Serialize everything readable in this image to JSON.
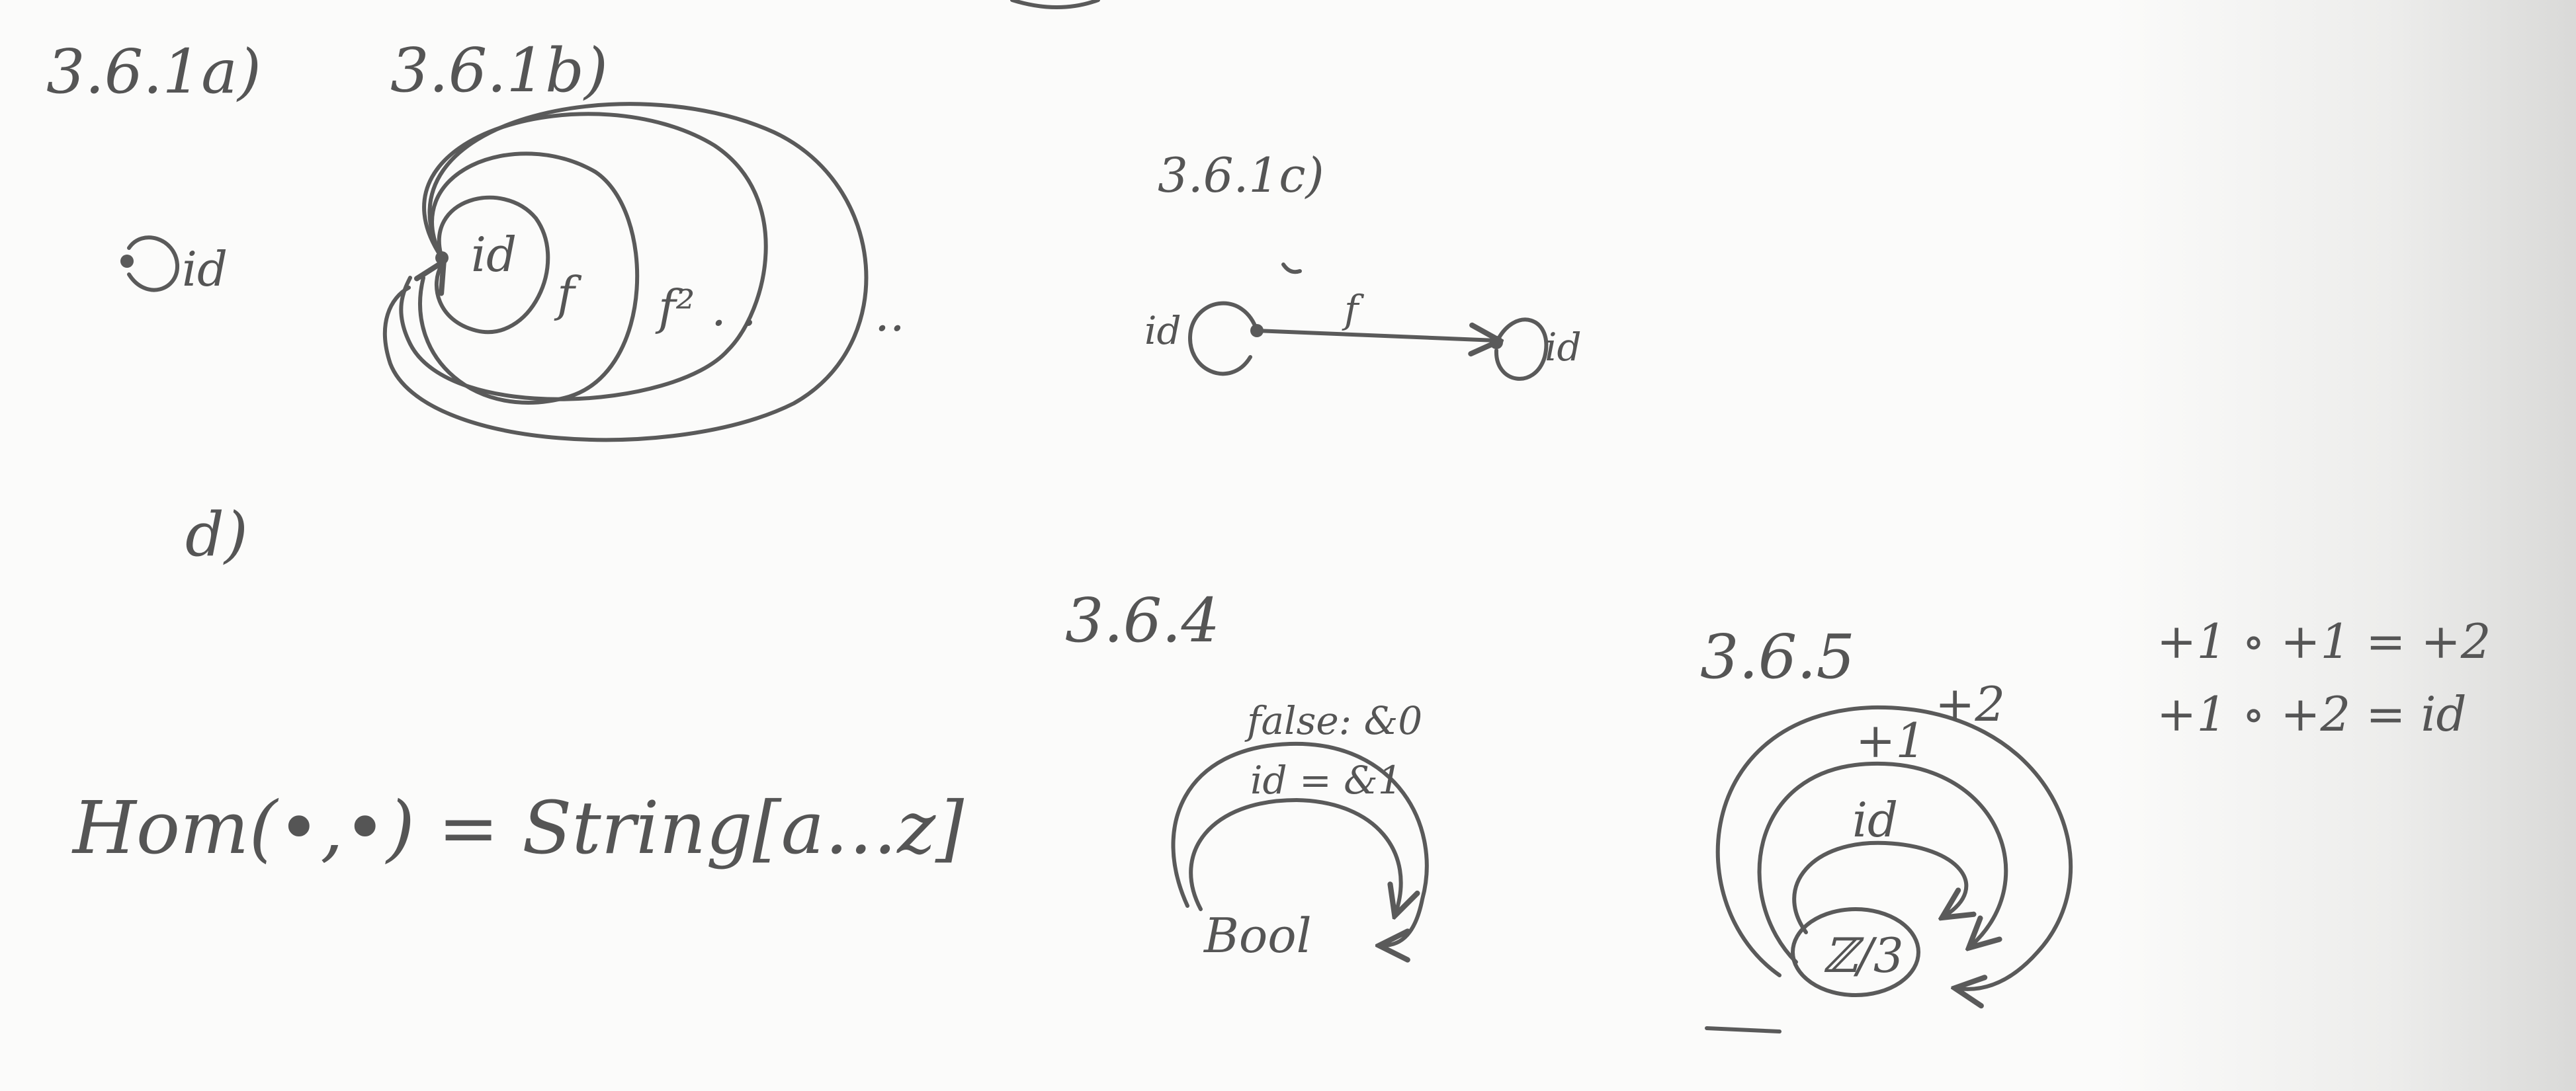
{
  "labels": {
    "ex_3_6_1a": "3.6.1a)",
    "ex_3_6_1b": "3.6.1b)",
    "ex_3_6_1c": "3.6.1c)",
    "ex_3_6_1d": "d)",
    "ex_3_6_4": "3.6.4",
    "ex_3_6_5": "3.6.5"
  },
  "diagram_a": {
    "arrow_label": "id"
  },
  "diagram_b": {
    "inner_label": "id",
    "middle_label": "f",
    "outer_label": "f²",
    "dots_inner": ". .",
    "dots_outer": ".."
  },
  "diagram_c": {
    "left_loop_label": "id",
    "arrow_label": "f",
    "right_loop_label": "id"
  },
  "diagram_d": {
    "hom_formula": "Hom(•,•) = String[a…z]"
  },
  "diagram_364": {
    "object": "Bool",
    "outer_arrow": "false: &0",
    "inner_arrow": "id = &1"
  },
  "diagram_365": {
    "object": "ℤ/3",
    "arrow_outer": "+2",
    "arrow_middle": "+1",
    "arrow_inner": "id",
    "equation_1": "+1 ∘ +1 = +2",
    "equation_2": "+1 ∘ +2 = id"
  },
  "colors": {
    "ink": "#5a5a5a",
    "paper": "#fbfbfa"
  }
}
